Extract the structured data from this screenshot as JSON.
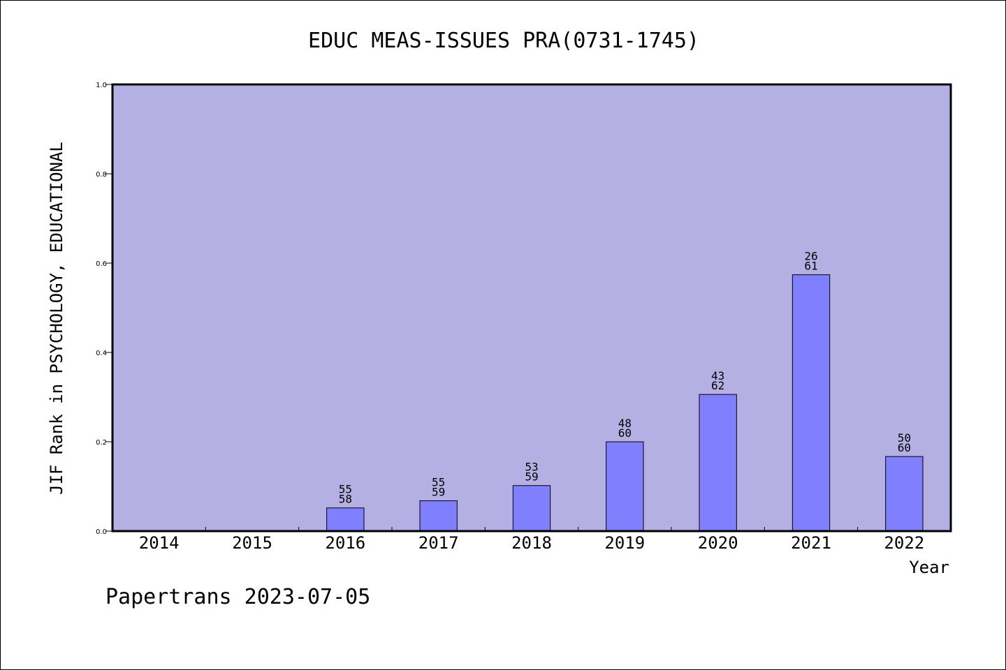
{
  "chart_data": {
    "type": "bar",
    "title": "EDUC MEAS-ISSUES PRA(0731-1745)",
    "xlabel": "Year",
    "ylabel": "JIF Rank in PSYCHOLOGY, EDUCATIONAL",
    "ylim": [
      0,
      1.0
    ],
    "yticks": [
      "0.0",
      "0.2",
      "0.4",
      "0.6",
      "0.8",
      "1.0"
    ],
    "categories": [
      "2014",
      "2015",
      "2016",
      "2017",
      "2018",
      "2019",
      "2020",
      "2021",
      "2022"
    ],
    "values": [
      null,
      null,
      0.052,
      0.068,
      0.102,
      0.2,
      0.306,
      0.574,
      0.167
    ],
    "labels": [
      null,
      null,
      {
        "rank": "55",
        "total": "58"
      },
      {
        "rank": "55",
        "total": "59"
      },
      {
        "rank": "53",
        "total": "59"
      },
      {
        "rank": "48",
        "total": "60"
      },
      {
        "rank": "43",
        "total": "62"
      },
      {
        "rank": "26",
        "total": "61"
      },
      {
        "rank": "50",
        "total": "60"
      }
    ],
    "grid": false,
    "colors": {
      "plot_background": "#b5b0e3",
      "bar_fill": "#8080ff",
      "bar_stroke": "#000000"
    }
  },
  "footer": {
    "text": "Papertrans 2023-07-05"
  }
}
